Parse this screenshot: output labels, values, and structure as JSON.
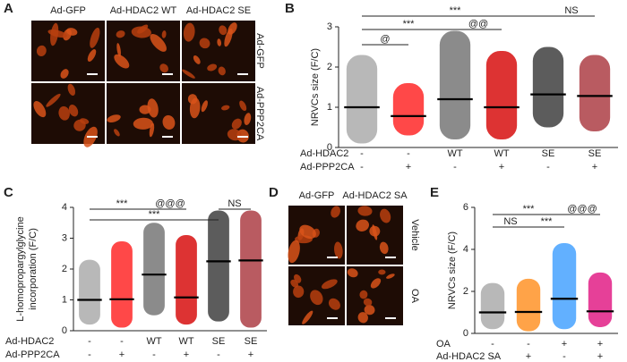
{
  "image_panels": [
    {
      "label": "A",
      "columns": [
        "Ad-GFP",
        "Ad-HDAC2 WT",
        "Ad-HDAC2 SE"
      ],
      "rows": [
        "Ad-GFP",
        "Ad-PPP2CA"
      ]
    },
    {
      "label": "D",
      "columns": [
        "Ad-GFP",
        "Ad-HDAC2 SA"
      ],
      "rows": [
        "Vehicle",
        "OA"
      ]
    }
  ],
  "chart_data": [
    {
      "type": "dot",
      "panel_label": "B",
      "y_label": [
        "NRVCs size (F/C)"
      ],
      "ylim": [
        0,
        3
      ],
      "yticks": [
        0,
        1,
        2,
        3
      ],
      "row_labels": [
        "Ad-HDAC2",
        "Ad-PPP2CA"
      ],
      "group_labels": [
        [
          "-",
          "-",
          "WT",
          "WT",
          "SE",
          "SE"
        ],
        [
          "-",
          "+",
          "-",
          "+",
          "-",
          "+"
        ]
      ],
      "series": [
        {
          "color": "#a6a6a6",
          "mean": 1.0,
          "range": [
            0.1,
            2.3
          ]
        },
        {
          "color": "#ff1a1a",
          "mean": 0.78,
          "range": [
            0.3,
            1.6
          ]
        },
        {
          "color": "#6e6e6e",
          "mean": 1.2,
          "range": [
            0.2,
            2.9
          ]
        },
        {
          "color": "#d40000",
          "mean": 1.0,
          "range": [
            0.2,
            2.4
          ]
        },
        {
          "color": "#333333",
          "mean": 1.32,
          "range": [
            0.5,
            2.5
          ]
        },
        {
          "color": "#a8323a",
          "mean": 1.28,
          "range": [
            0.4,
            2.3
          ]
        }
      ],
      "comparisons": [
        {
          "groups": [
            0,
            4
          ],
          "label": "***"
        },
        {
          "groups": [
            4,
            5
          ],
          "label": "NS"
        },
        {
          "groups": [
            0,
            2
          ],
          "label": "***"
        },
        {
          "groups": [
            2,
            3
          ],
          "label": "@@"
        },
        {
          "groups": [
            0,
            1
          ],
          "label": "@"
        }
      ]
    },
    {
      "type": "dot",
      "panel_label": "C",
      "y_label": [
        "L-homopropargylglycine",
        "incorporation (F/C)"
      ],
      "ylim": [
        0,
        4
      ],
      "yticks": [
        0,
        1,
        2,
        3,
        4
      ],
      "row_labels": [
        "Ad-HDAC2",
        "Ad-PPP2CA"
      ],
      "group_labels": [
        [
          "-",
          "-",
          "WT",
          "WT",
          "SE",
          "SE"
        ],
        [
          "-",
          "+",
          "-",
          "+",
          "-",
          "+"
        ]
      ],
      "series": [
        {
          "color": "#a6a6a6",
          "mean": 1.0,
          "range": [
            0.2,
            2.3
          ]
        },
        {
          "color": "#ff1a1a",
          "mean": 1.02,
          "range": [
            0.1,
            2.9
          ]
        },
        {
          "color": "#6e6e6e",
          "mean": 1.82,
          "range": [
            0.5,
            3.5
          ]
        },
        {
          "color": "#d40000",
          "mean": 1.08,
          "range": [
            0.2,
            3.1
          ]
        },
        {
          "color": "#333333",
          "mean": 2.25,
          "range": [
            0.3,
            3.9
          ]
        },
        {
          "color": "#a8323a",
          "mean": 2.28,
          "range": [
            0.1,
            3.9
          ]
        }
      ],
      "comparisons": [
        {
          "groups": [
            0,
            2
          ],
          "label": "***"
        },
        {
          "groups": [
            2,
            3
          ],
          "label": "@@@"
        },
        {
          "groups": [
            4,
            5
          ],
          "label": "NS"
        },
        {
          "groups": [
            0,
            4
          ],
          "label": "***"
        }
      ]
    },
    {
      "type": "dot",
      "panel_label": "E",
      "y_label": [
        "NRVCs size (F/C)"
      ],
      "ylim": [
        0,
        6
      ],
      "yticks": [
        0,
        2,
        4,
        6
      ],
      "row_labels": [
        "OA",
        "Ad-HDAC2 SA"
      ],
      "group_labels": [
        [
          "-",
          "-",
          "+",
          "+"
        ],
        [
          "-",
          "+",
          "-",
          "+"
        ]
      ],
      "series": [
        {
          "color": "#a6a6a6",
          "mean": 1.0,
          "range": [
            0.2,
            2.4
          ]
        },
        {
          "color": "#ff8c1a",
          "mean": 1.02,
          "range": [
            0.1,
            2.6
          ]
        },
        {
          "color": "#3b9cff",
          "mean": 1.65,
          "range": [
            0.2,
            4.3
          ]
        },
        {
          "color": "#e0107e",
          "mean": 1.05,
          "range": [
            0.3,
            2.9
          ]
        }
      ],
      "comparisons": [
        {
          "groups": [
            0,
            2
          ],
          "label": "***"
        },
        {
          "groups": [
            2,
            3
          ],
          "label": "@@@"
        },
        {
          "groups": [
            0,
            1
          ],
          "label": "NS"
        },
        {
          "groups": [
            1,
            2
          ],
          "label": "***"
        }
      ]
    }
  ]
}
